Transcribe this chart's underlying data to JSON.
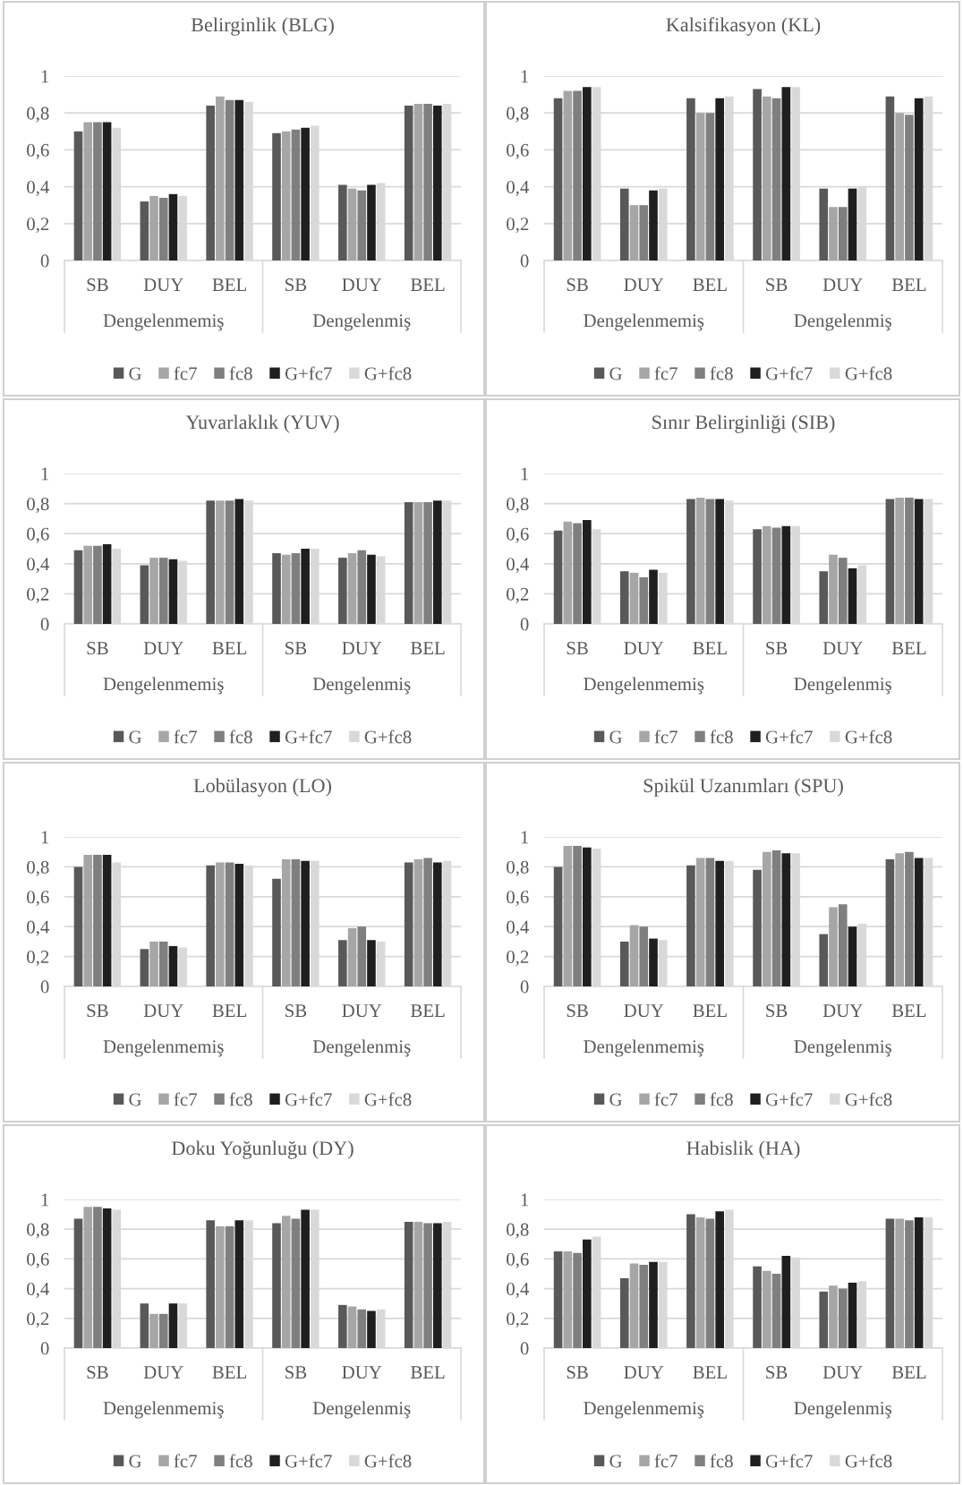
{
  "chart_data": [
    {
      "type": "bar",
      "title": "Belirginlik (BLG)",
      "categories": [
        "SB",
        "DUY",
        "BEL",
        "SB",
        "DUY",
        "BEL"
      ],
      "annotations": [
        "Dengelenmemiş",
        "Dengelenmiş"
      ],
      "ylim": [
        0,
        1
      ],
      "yticks": [
        0,
        {
          "value": 0.2,
          "label": "0,2"
        },
        {
          "value": 0.4,
          "label": "0,4"
        },
        {
          "value": 0.6,
          "label": "0,6"
        },
        {
          "value": 0.8,
          "label": "0,8"
        },
        1
      ],
      "grid": "y",
      "legend": "bottom",
      "series": [
        {
          "name": "G",
          "color": "#595959",
          "values": [
            0.7,
            0.32,
            0.84,
            0.69,
            0.41,
            0.84
          ]
        },
        {
          "name": "fc7",
          "color": "#a6a6a6",
          "values": [
            0.75,
            0.35,
            0.89,
            0.7,
            0.39,
            0.85
          ]
        },
        {
          "name": "fc8",
          "color": "#7f7f7f",
          "values": [
            0.75,
            0.34,
            0.87,
            0.71,
            0.38,
            0.85
          ]
        },
        {
          "name": "G+fc7",
          "color": "#1f1f1f",
          "values": [
            0.75,
            0.36,
            0.87,
            0.72,
            0.41,
            0.84
          ]
        },
        {
          "name": "G+fc8",
          "color": "#d9d9d9",
          "values": [
            0.72,
            0.35,
            0.86,
            0.73,
            0.42,
            0.85
          ]
        }
      ]
    },
    {
      "type": "bar",
      "title": "Kalsifikasyon (KL)",
      "categories": [
        "SB",
        "DUY",
        "BEL",
        "SB",
        "DUY",
        "BEL"
      ],
      "annotations": [
        "Dengelenmemiş",
        "Dengelenmiş"
      ],
      "ylim": [
        0,
        1
      ],
      "yticks": [
        0,
        {
          "value": 0.2,
          "label": "0,2"
        },
        {
          "value": 0.4,
          "label": "0,4"
        },
        {
          "value": 0.6,
          "label": "0,6"
        },
        {
          "value": 0.8,
          "label": "0,8"
        },
        1
      ],
      "grid": "y",
      "legend": "bottom",
      "series": [
        {
          "name": "G",
          "color": "#595959",
          "values": [
            0.88,
            0.39,
            0.88,
            0.93,
            0.39,
            0.89
          ]
        },
        {
          "name": "fc7",
          "color": "#a6a6a6",
          "values": [
            0.92,
            0.3,
            0.8,
            0.89,
            0.29,
            0.8
          ]
        },
        {
          "name": "fc8",
          "color": "#7f7f7f",
          "values": [
            0.92,
            0.3,
            0.8,
            0.88,
            0.29,
            0.79
          ]
        },
        {
          "name": "G+fc7",
          "color": "#1f1f1f",
          "values": [
            0.94,
            0.38,
            0.88,
            0.94,
            0.39,
            0.88
          ]
        },
        {
          "name": "G+fc8",
          "color": "#d9d9d9",
          "values": [
            0.94,
            0.39,
            0.89,
            0.94,
            0.4,
            0.89
          ]
        }
      ]
    },
    {
      "type": "bar",
      "title": "Yuvarlaklık (YUV)",
      "categories": [
        "SB",
        "DUY",
        "BEL",
        "SB",
        "DUY",
        "BEL"
      ],
      "annotations": [
        "Dengelenmemiş",
        "Dengelenmiş"
      ],
      "ylim": [
        0,
        1
      ],
      "yticks": [
        0,
        {
          "value": 0.2,
          "label": "0,2"
        },
        {
          "value": 0.4,
          "label": "0,4"
        },
        {
          "value": 0.6,
          "label": "0,6"
        },
        {
          "value": 0.8,
          "label": "0,8"
        },
        1
      ],
      "grid": "y",
      "legend": "bottom",
      "series": [
        {
          "name": "G",
          "color": "#595959",
          "values": [
            0.49,
            0.39,
            0.82,
            0.47,
            0.44,
            0.81
          ]
        },
        {
          "name": "fc7",
          "color": "#a6a6a6",
          "values": [
            0.52,
            0.44,
            0.82,
            0.46,
            0.47,
            0.81
          ]
        },
        {
          "name": "fc8",
          "color": "#7f7f7f",
          "values": [
            0.52,
            0.44,
            0.82,
            0.47,
            0.49,
            0.81
          ]
        },
        {
          "name": "G+fc7",
          "color": "#1f1f1f",
          "values": [
            0.53,
            0.43,
            0.83,
            0.5,
            0.46,
            0.82
          ]
        },
        {
          "name": "G+fc8",
          "color": "#d9d9d9",
          "values": [
            0.5,
            0.42,
            0.82,
            0.5,
            0.45,
            0.82
          ]
        }
      ]
    },
    {
      "type": "bar",
      "title": "Sınır Belirginliği (SIB)",
      "categories": [
        "SB",
        "DUY",
        "BEL",
        "SB",
        "DUY",
        "BEL"
      ],
      "annotations": [
        "Dengelenmemiş",
        "Dengelenmiş"
      ],
      "ylim": [
        0,
        1
      ],
      "yticks": [
        0,
        {
          "value": 0.2,
          "label": "0,2"
        },
        {
          "value": 0.4,
          "label": "0,4"
        },
        {
          "value": 0.6,
          "label": "0,6"
        },
        {
          "value": 0.8,
          "label": "0,8"
        },
        1
      ],
      "grid": "y",
      "legend": "bottom",
      "series": [
        {
          "name": "G",
          "color": "#595959",
          "values": [
            0.62,
            0.35,
            0.83,
            0.63,
            0.35,
            0.83
          ]
        },
        {
          "name": "fc7",
          "color": "#a6a6a6",
          "values": [
            0.68,
            0.34,
            0.84,
            0.65,
            0.46,
            0.84
          ]
        },
        {
          "name": "fc8",
          "color": "#7f7f7f",
          "values": [
            0.67,
            0.31,
            0.83,
            0.64,
            0.44,
            0.84
          ]
        },
        {
          "name": "G+fc7",
          "color": "#1f1f1f",
          "values": [
            0.69,
            0.36,
            0.83,
            0.65,
            0.37,
            0.83
          ]
        },
        {
          "name": "G+fc8",
          "color": "#d9d9d9",
          "values": [
            0.63,
            0.34,
            0.82,
            0.65,
            0.39,
            0.83
          ]
        }
      ]
    },
    {
      "type": "bar",
      "title": "Lobülasyon (LO)",
      "categories": [
        "SB",
        "DUY",
        "BEL",
        "SB",
        "DUY",
        "BEL"
      ],
      "annotations": [
        "Dengelenmemiş",
        "Dengelenmiş"
      ],
      "ylim": [
        0,
        1
      ],
      "yticks": [
        0,
        {
          "value": 0.2,
          "label": "0,2"
        },
        {
          "value": 0.4,
          "label": "0,4"
        },
        {
          "value": 0.6,
          "label": "0,6"
        },
        {
          "value": 0.8,
          "label": "0,8"
        },
        1
      ],
      "grid": "y",
      "legend": "bottom",
      "series": [
        {
          "name": "G",
          "color": "#595959",
          "values": [
            0.8,
            0.25,
            0.81,
            0.72,
            0.31,
            0.83
          ]
        },
        {
          "name": "fc7",
          "color": "#a6a6a6",
          "values": [
            0.88,
            0.3,
            0.83,
            0.85,
            0.39,
            0.85
          ]
        },
        {
          "name": "fc8",
          "color": "#7f7f7f",
          "values": [
            0.88,
            0.3,
            0.83,
            0.85,
            0.4,
            0.86
          ]
        },
        {
          "name": "G+fc7",
          "color": "#1f1f1f",
          "values": [
            0.88,
            0.27,
            0.82,
            0.84,
            0.31,
            0.83
          ]
        },
        {
          "name": "G+fc8",
          "color": "#d9d9d9",
          "values": [
            0.83,
            0.26,
            0.81,
            0.84,
            0.3,
            0.84
          ]
        }
      ]
    },
    {
      "type": "bar",
      "title": "Spikül Uzanımları (SPU)",
      "categories": [
        "SB",
        "DUY",
        "BEL",
        "SB",
        "DUY",
        "BEL"
      ],
      "annotations": [
        "Dengelenmemiş",
        "Dengelenmiş"
      ],
      "ylim": [
        0,
        1
      ],
      "yticks": [
        0,
        {
          "value": 0.2,
          "label": "0,2"
        },
        {
          "value": 0.4,
          "label": "0,4"
        },
        {
          "value": 0.6,
          "label": "0,6"
        },
        {
          "value": 0.8,
          "label": "0,8"
        },
        1
      ],
      "grid": "y",
      "legend": "bottom",
      "series": [
        {
          "name": "G",
          "color": "#595959",
          "values": [
            0.8,
            0.3,
            0.81,
            0.78,
            0.35,
            0.85
          ]
        },
        {
          "name": "fc7",
          "color": "#a6a6a6",
          "values": [
            0.94,
            0.41,
            0.86,
            0.9,
            0.53,
            0.89
          ]
        },
        {
          "name": "fc8",
          "color": "#7f7f7f",
          "values": [
            0.94,
            0.4,
            0.86,
            0.91,
            0.55,
            0.9
          ]
        },
        {
          "name": "G+fc7",
          "color": "#1f1f1f",
          "values": [
            0.93,
            0.32,
            0.84,
            0.89,
            0.4,
            0.86
          ]
        },
        {
          "name": "G+fc8",
          "color": "#d9d9d9",
          "values": [
            0.92,
            0.31,
            0.84,
            0.89,
            0.42,
            0.86
          ]
        }
      ]
    },
    {
      "type": "bar",
      "title": "Doku Yoğunluğu (DY)",
      "categories": [
        "SB",
        "DUY",
        "BEL",
        "SB",
        "DUY",
        "BEL"
      ],
      "annotations": [
        "Dengelenmemiş",
        "Dengelenmiş"
      ],
      "ylim": [
        0,
        1
      ],
      "yticks": [
        0,
        {
          "value": 0.2,
          "label": "0,2"
        },
        {
          "value": 0.4,
          "label": "0,4"
        },
        {
          "value": 0.6,
          "label": "0,6"
        },
        {
          "value": 0.8,
          "label": "0,8"
        },
        1
      ],
      "grid": "y",
      "legend": "bottom",
      "series": [
        {
          "name": "G",
          "color": "#595959",
          "values": [
            0.87,
            0.3,
            0.86,
            0.84,
            0.29,
            0.85
          ]
        },
        {
          "name": "fc7",
          "color": "#a6a6a6",
          "values": [
            0.95,
            0.23,
            0.82,
            0.89,
            0.28,
            0.85
          ]
        },
        {
          "name": "fc8",
          "color": "#7f7f7f",
          "values": [
            0.95,
            0.23,
            0.82,
            0.87,
            0.26,
            0.84
          ]
        },
        {
          "name": "G+fc7",
          "color": "#1f1f1f",
          "values": [
            0.94,
            0.3,
            0.86,
            0.93,
            0.25,
            0.84
          ]
        },
        {
          "name": "G+fc8",
          "color": "#d9d9d9",
          "values": [
            0.93,
            0.3,
            0.86,
            0.93,
            0.26,
            0.85
          ]
        }
      ]
    },
    {
      "type": "bar",
      "title": "Habislik (HA)",
      "categories": [
        "SB",
        "DUY",
        "BEL",
        "SB",
        "DUY",
        "BEL"
      ],
      "annotations": [
        "Dengelenmemiş",
        "Dengelenmiş"
      ],
      "ylim": [
        0,
        1
      ],
      "yticks": [
        0,
        {
          "value": 0.2,
          "label": "0,2"
        },
        {
          "value": 0.4,
          "label": "0,4"
        },
        {
          "value": 0.6,
          "label": "0,6"
        },
        {
          "value": 0.8,
          "label": "0,8"
        },
        1
      ],
      "grid": "y",
      "legend": "bottom",
      "series": [
        {
          "name": "G",
          "color": "#595959",
          "values": [
            0.65,
            0.47,
            0.9,
            0.55,
            0.38,
            0.87
          ]
        },
        {
          "name": "fc7",
          "color": "#a6a6a6",
          "values": [
            0.65,
            0.57,
            0.88,
            0.52,
            0.42,
            0.87
          ]
        },
        {
          "name": "fc8",
          "color": "#7f7f7f",
          "values": [
            0.64,
            0.56,
            0.87,
            0.5,
            0.4,
            0.86
          ]
        },
        {
          "name": "G+fc7",
          "color": "#1f1f1f",
          "values": [
            0.73,
            0.58,
            0.92,
            0.62,
            0.44,
            0.88
          ]
        },
        {
          "name": "G+fc8",
          "color": "#d9d9d9",
          "values": [
            0.75,
            0.58,
            0.93,
            0.61,
            0.45,
            0.88
          ]
        }
      ]
    }
  ]
}
